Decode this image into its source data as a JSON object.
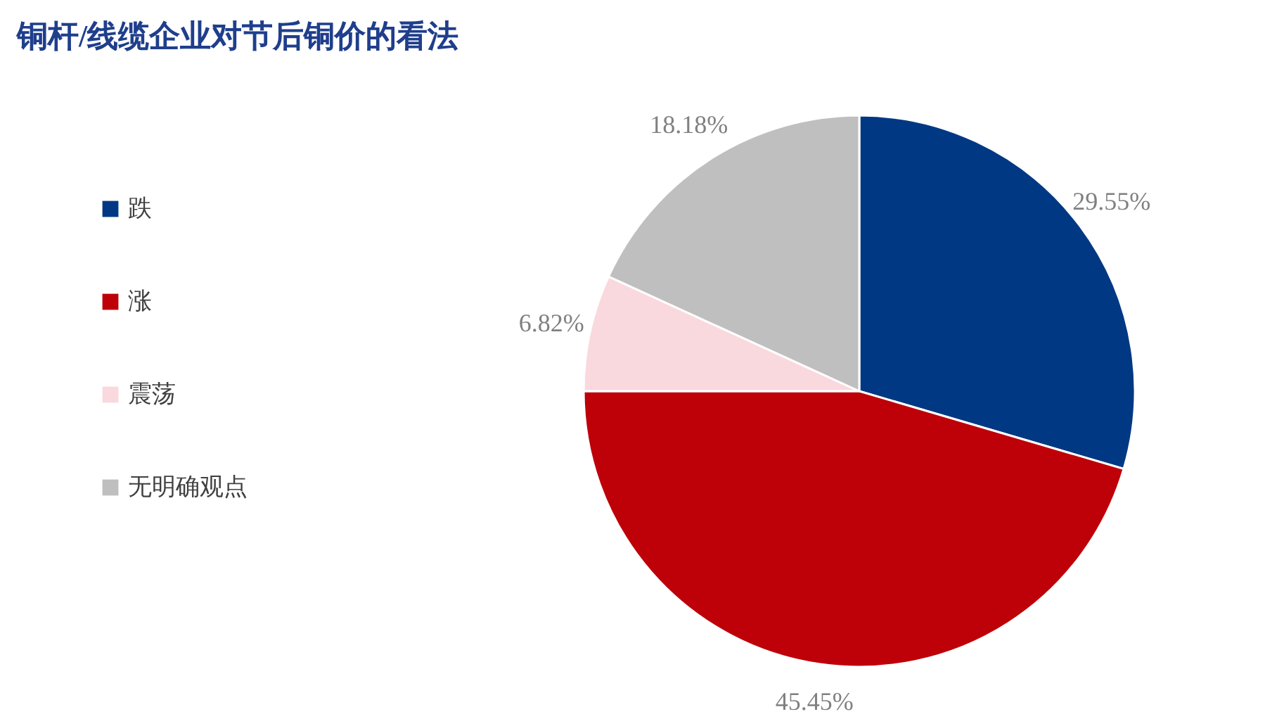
{
  "chart_data": {
    "type": "pie",
    "title": "铜杆/线缆企业对节后铜价的看法",
    "categories": [
      "跌",
      "涨",
      "震荡",
      "无明确观点"
    ],
    "values": [
      29.55,
      45.45,
      6.82,
      18.18
    ],
    "colors": [
      "#003883",
      "#be0008",
      "#f9d9de",
      "#bfbfbf"
    ],
    "value_labels": [
      "29.55%",
      "45.45%",
      "6.82%",
      "18.18%"
    ],
    "legend": "left"
  }
}
